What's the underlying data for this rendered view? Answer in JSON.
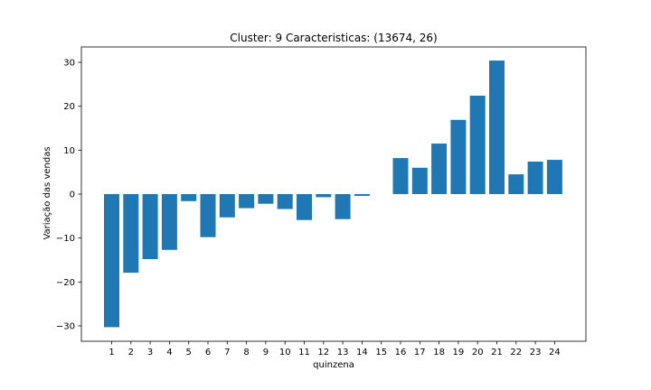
{
  "chart_data": {
    "type": "bar",
    "title": "Cluster: 9 Caracteristicas: (13674, 26)",
    "xlabel": "quinzena",
    "ylabel": "Variação das vendas",
    "categories": [
      "1",
      "2",
      "3",
      "4",
      "5",
      "6",
      "7",
      "8",
      "9",
      "10",
      "11",
      "12",
      "13",
      "14",
      "15",
      "16",
      "17",
      "18",
      "19",
      "20",
      "21",
      "22",
      "23",
      "24"
    ],
    "values": [
      -30.3,
      -17.9,
      -14.8,
      -12.7,
      -1.6,
      -9.8,
      -5.3,
      -3.2,
      -2.2,
      -3.4,
      -5.9,
      -0.7,
      -5.7,
      -0.4,
      0.0,
      8.2,
      6.0,
      11.5,
      16.9,
      22.4,
      30.4,
      4.5,
      7.4,
      7.8
    ],
    "ylim": [
      -33.5,
      33.5
    ],
    "yticks": [
      -30,
      -20,
      -10,
      0,
      10,
      20,
      30
    ],
    "ytick_labels": [
      "−30",
      "−20",
      "−10",
      "0",
      "10",
      "20",
      "30"
    ],
    "grid": false,
    "bar_color": "#1f77b4"
  }
}
